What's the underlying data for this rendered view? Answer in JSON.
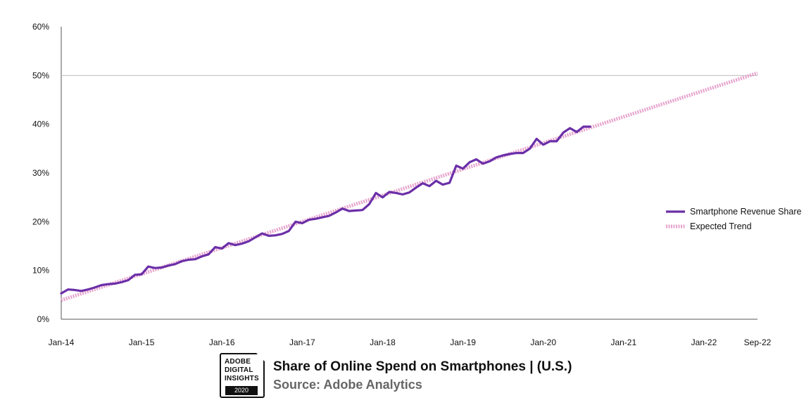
{
  "chart_data": {
    "type": "line",
    "x_tick_labels": [
      "Jan-14",
      "Jan-15",
      "Jan-16",
      "Jan-17",
      "Jan-18",
      "Jan-19",
      "Jan-20",
      "Jan-21",
      "Jan-22",
      "Sep-22"
    ],
    "y_tick_labels": [
      "0%",
      "10%",
      "20%",
      "30%",
      "40%",
      "50%",
      "60%"
    ],
    "ylim": [
      0,
      60
    ],
    "xlim": [
      "2014-01",
      "2022-09"
    ],
    "grid": "horizontal line at 50%",
    "legend_position": "right",
    "series": [
      {
        "name": "Smartphone Revenue Share",
        "color": "#6B2FA8",
        "style": "solid",
        "x": [
          "2014-01",
          "2014-02",
          "2014-03",
          "2014-04",
          "2014-05",
          "2014-06",
          "2014-07",
          "2014-08",
          "2014-09",
          "2014-10",
          "2014-11",
          "2014-12",
          "2015-01",
          "2015-02",
          "2015-03",
          "2015-04",
          "2015-05",
          "2015-06",
          "2015-07",
          "2015-08",
          "2015-09",
          "2015-10",
          "2015-11",
          "2015-12",
          "2016-01",
          "2016-02",
          "2016-03",
          "2016-04",
          "2016-05",
          "2016-06",
          "2016-07",
          "2016-08",
          "2016-09",
          "2016-10",
          "2016-11",
          "2016-12",
          "2017-01",
          "2017-02",
          "2017-03",
          "2017-04",
          "2017-05",
          "2017-06",
          "2017-07",
          "2017-08",
          "2017-09",
          "2017-10",
          "2017-11",
          "2017-12",
          "2018-01",
          "2018-02",
          "2018-03",
          "2018-04",
          "2018-05",
          "2018-06",
          "2018-07",
          "2018-08",
          "2018-09",
          "2018-10",
          "2018-11",
          "2018-12",
          "2019-01",
          "2019-02",
          "2019-03",
          "2019-04",
          "2019-05",
          "2019-06",
          "2019-07",
          "2019-08",
          "2019-09",
          "2019-10",
          "2019-11",
          "2019-12",
          "2020-01",
          "2020-02",
          "2020-03",
          "2020-04",
          "2020-05",
          "2020-06",
          "2020-07",
          "2020-08"
        ],
        "values": [
          5.3,
          6.1,
          6.0,
          5.8,
          6.1,
          6.5,
          7.0,
          7.2,
          7.3,
          7.6,
          8.0,
          9.1,
          9.2,
          10.8,
          10.5,
          10.6,
          11.0,
          11.3,
          11.9,
          12.2,
          12.3,
          12.9,
          13.3,
          14.8,
          14.5,
          15.6,
          15.2,
          15.5,
          16.0,
          16.8,
          17.6,
          17.1,
          17.2,
          17.5,
          18.1,
          20.0,
          19.7,
          20.4,
          20.6,
          20.9,
          21.2,
          21.9,
          22.7,
          22.2,
          22.3,
          22.4,
          23.6,
          25.9,
          25.0,
          26.1,
          25.9,
          25.6,
          26.0,
          27.0,
          27.9,
          27.3,
          28.4,
          27.6,
          28.0,
          31.5,
          30.9,
          32.2,
          32.8,
          31.9,
          32.4,
          33.2,
          33.6,
          33.9,
          34.1,
          34.1,
          35.0,
          37.0,
          35.8,
          36.5,
          36.5,
          38.3,
          39.2,
          38.4,
          39.5,
          39.5
        ]
      },
      {
        "name": "Expected Trend",
        "color": "#E6A3CC",
        "style": "dotted",
        "x": [
          "2014-01",
          "2022-09"
        ],
        "values": [
          3.9,
          50.5
        ]
      }
    ]
  },
  "footer": {
    "badge_lines": [
      "ADOBE",
      "DIGITAL",
      "INSIGHTS"
    ],
    "badge_year": "2020",
    "title": "Share of Online Spend on Smartphones | (U.S.)",
    "source": "Source: Adobe Analytics"
  }
}
